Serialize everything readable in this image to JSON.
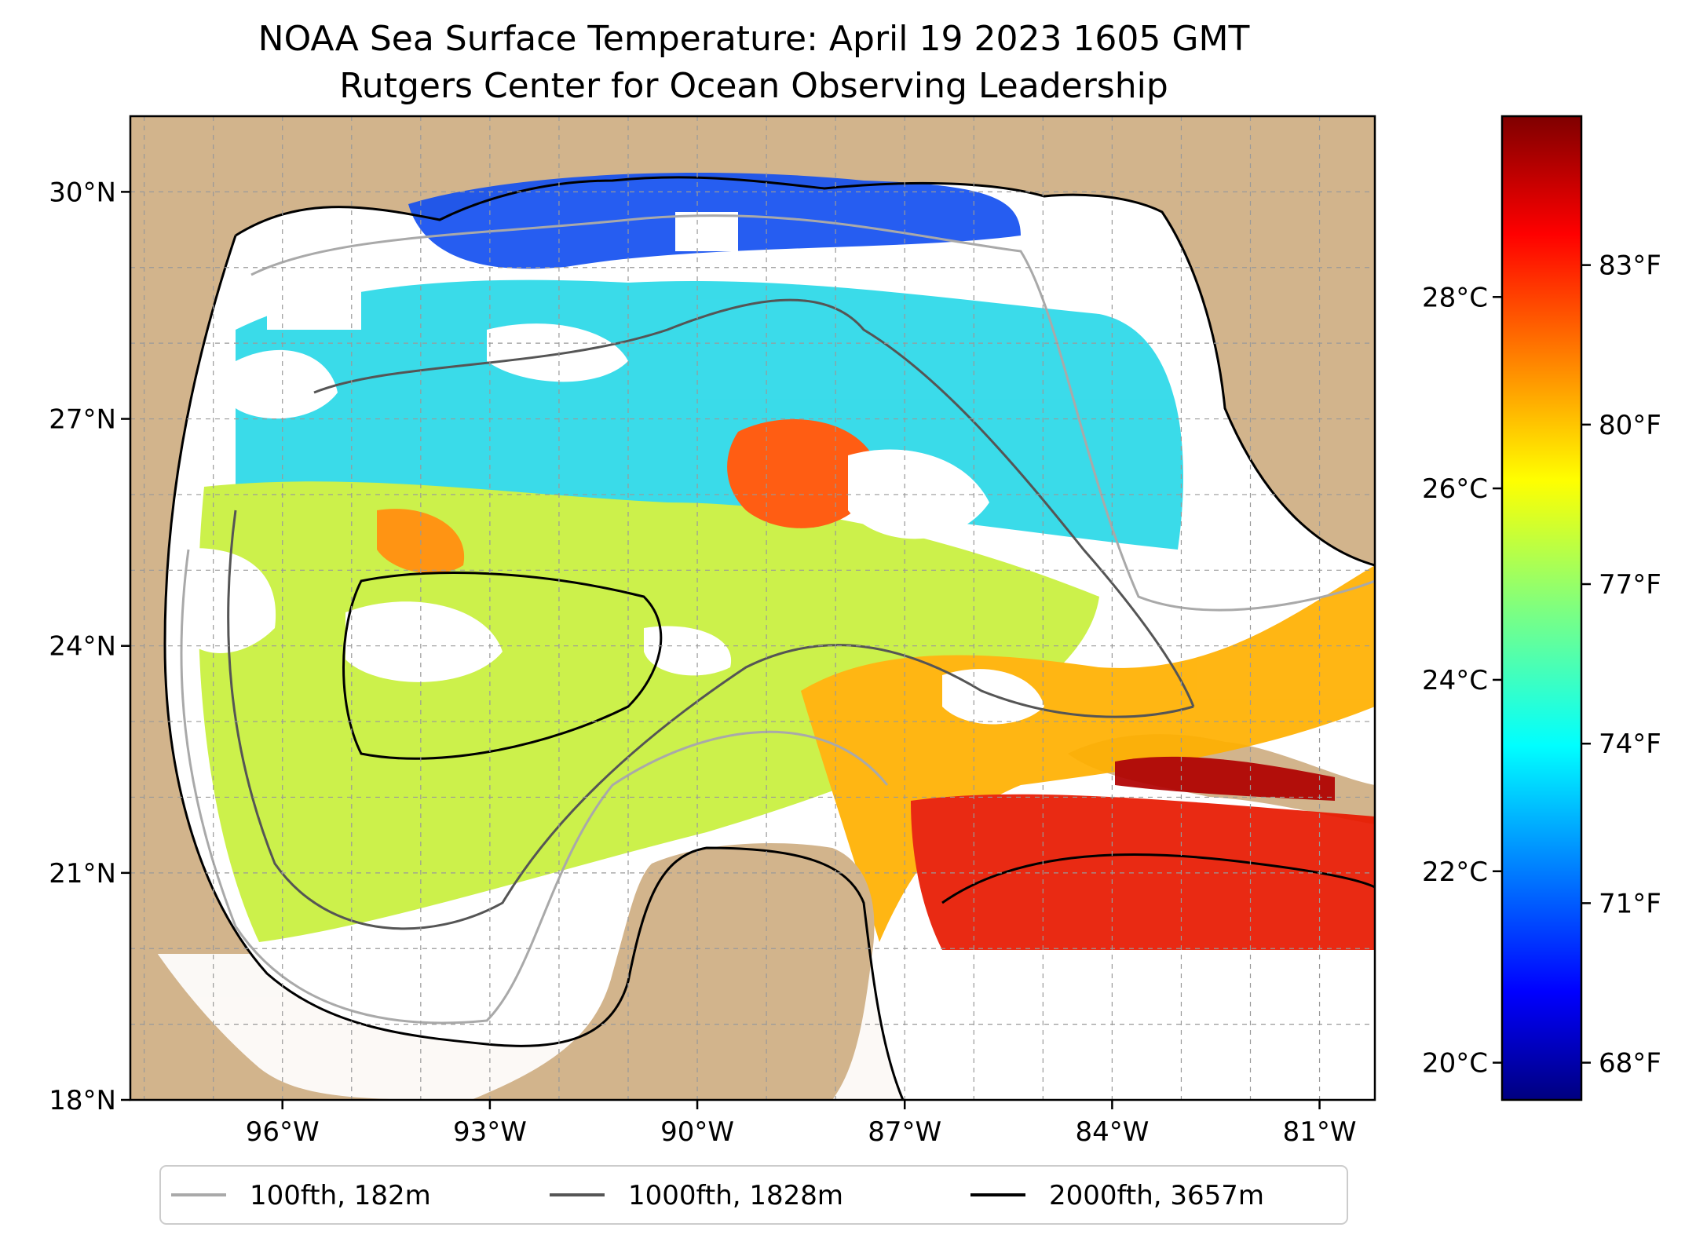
{
  "title": {
    "line1": "NOAA Sea Surface Temperature: April 19 2023 1605 GMT",
    "line2": "Rutgers Center for Ocean Observing Leadership"
  },
  "map": {
    "lon_range": [
      -98.2,
      -80.2
    ],
    "lat_range": [
      18.0,
      31.0
    ],
    "lat_ticks": [
      {
        "value": 30,
        "label": "30°N"
      },
      {
        "value": 27,
        "label": "27°N"
      },
      {
        "value": 24,
        "label": "24°N"
      },
      {
        "value": 21,
        "label": "21°N"
      },
      {
        "value": 18,
        "label": "18°N"
      }
    ],
    "lon_ticks": [
      {
        "value": -96,
        "label": "96°W"
      },
      {
        "value": -93,
        "label": "93°W"
      },
      {
        "value": -90,
        "label": "90°W"
      },
      {
        "value": -87,
        "label": "87°W"
      },
      {
        "value": -84,
        "label": "84°W"
      },
      {
        "value": -81,
        "label": "81°W"
      }
    ],
    "grid": "dashed",
    "colors": {
      "land": "#d2b48c",
      "ocean_no_data": "#ffffff",
      "coast": "#000000",
      "contour_100": "#a9a9a9",
      "contour_1000": "#555555",
      "contour_2000": "#000000"
    }
  },
  "colorbar": {
    "colormap": "jet",
    "celsius_ticks": [
      {
        "value": 20,
        "label": "20°C"
      },
      {
        "value": 22,
        "label": "22°C"
      },
      {
        "value": 24,
        "label": "24°C"
      },
      {
        "value": 26,
        "label": "26°C"
      },
      {
        "value": 28,
        "label": "28°C"
      }
    ],
    "fahrenheit_ticks": [
      {
        "value": 68,
        "label": "68°F"
      },
      {
        "value": 71,
        "label": "71°F"
      },
      {
        "value": 74,
        "label": "74°F"
      },
      {
        "value": 77,
        "label": "77°F"
      },
      {
        "value": 80,
        "label": "80°F"
      },
      {
        "value": 83,
        "label": "83°F"
      }
    ]
  },
  "legend": {
    "placement": "bottom",
    "items": [
      {
        "label": "100fth, 182m",
        "color": "#a9a9a9"
      },
      {
        "label": "1000fth, 1828m",
        "color": "#555555"
      },
      {
        "label": "2000fth, 3657m",
        "color": "#000000"
      }
    ]
  }
}
